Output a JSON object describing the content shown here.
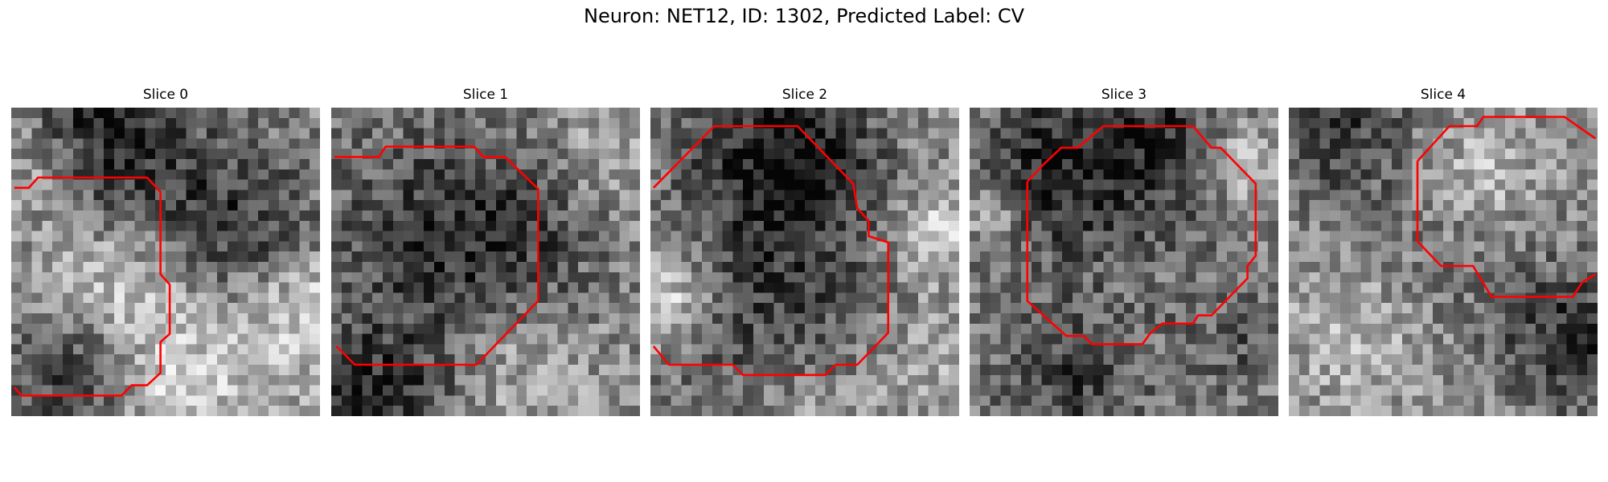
{
  "figure": {
    "title": "Neuron: NET12, ID: 1302, Predicted Label: CV"
  },
  "panels": [
    {
      "title": "Slice 0",
      "seed": 11,
      "contour_shape": "left-blob"
    },
    {
      "title": "Slice 1",
      "seed": 23,
      "contour_shape": "large-octagon"
    },
    {
      "title": "Slice 2",
      "seed": 37,
      "contour_shape": "round-cell"
    },
    {
      "title": "Slice 3",
      "seed": 41,
      "contour_shape": "octagon"
    },
    {
      "title": "Slice 4",
      "seed": 53,
      "contour_shape": "upper-right-octagon"
    }
  ],
  "colors": {
    "contour": "#ff0000",
    "background": "#ffffff"
  },
  "image": {
    "grid": 30,
    "colormap": "gray"
  }
}
